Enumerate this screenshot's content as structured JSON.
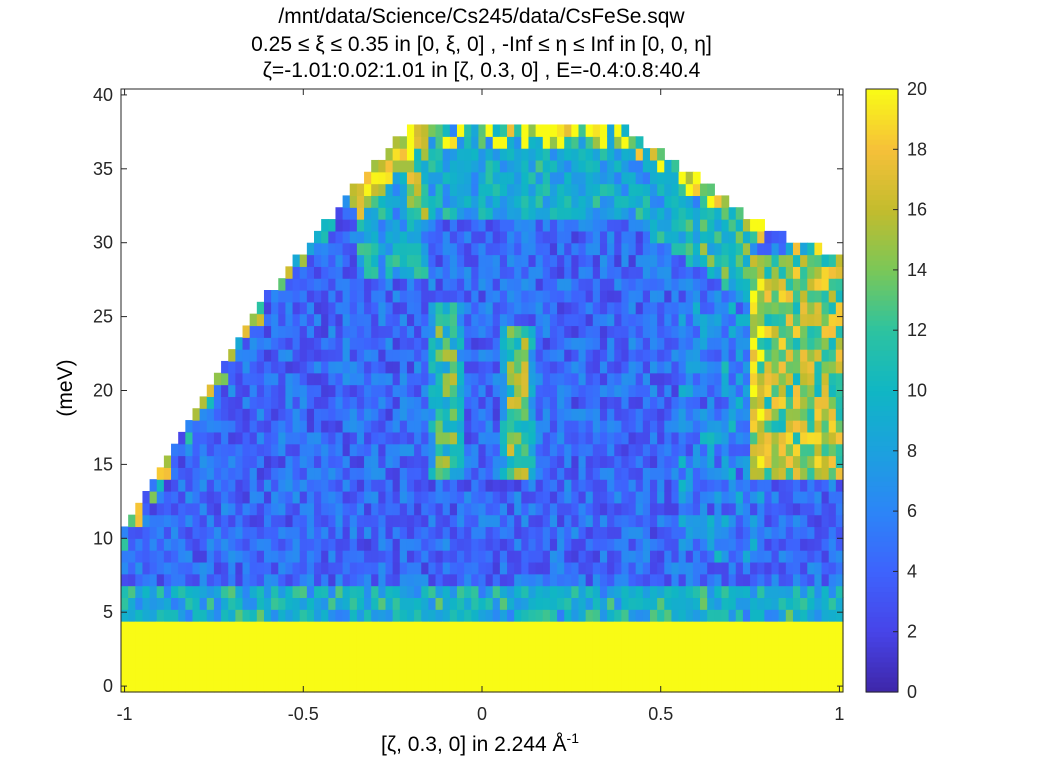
{
  "figure": {
    "title_lines": [
      "/mnt/data/Science/Cs245/data/CsFeSe.sqw",
      "0.25 ≤ ξ ≤ 0.35 in [0, ξ, 0] , -Inf ≤ η ≤ Inf in [0, 0, η]",
      "ζ=-1.01:0.02:1.01 in [ζ, 0.3, 0] , E=-0.4:0.8:40.4"
    ],
    "xlabel_main": "[ζ, 0.3, 0] in 2.244 Å",
    "xlabel_sup": "-1",
    "ylabel": "(meV)"
  },
  "chart_data": {
    "type": "heatmap",
    "title": "/mnt/data/Science/Cs245/data/CsFeSe.sqw",
    "xlabel": "[ζ, 0.3, 0] in 2.244 Å^-1",
    "ylabel": "(meV)",
    "xlim": [
      -1.01,
      1.01
    ],
    "ylim": [
      -0.4,
      40.4
    ],
    "x_bins": {
      "start": -1.01,
      "step": 0.02,
      "end": 1.01
    },
    "y_bins": {
      "start": -0.4,
      "step": 0.8,
      "end": 40.4
    },
    "x_ticks": [
      -1,
      -0.5,
      0,
      0.5,
      1
    ],
    "x_tick_labels": [
      "-1",
      "-0.5",
      "0",
      "0.5",
      "1"
    ],
    "y_ticks": [
      0,
      5,
      10,
      15,
      20,
      25,
      30,
      35,
      40
    ],
    "y_tick_labels": [
      "0",
      "5",
      "10",
      "15",
      "20",
      "25",
      "30",
      "35",
      "40"
    ],
    "colorbar": {
      "clim": [
        0,
        20
      ],
      "ticks": [
        0,
        2,
        4,
        6,
        8,
        10,
        12,
        14,
        16,
        18,
        20
      ],
      "tick_labels": [
        "0",
        "2",
        "4",
        "6",
        "8",
        "10",
        "12",
        "14",
        "16",
        "18",
        "20"
      ],
      "colormap": "parula",
      "colors": [
        "#3e26a8",
        "#4744e8",
        "#3e63fd",
        "#2c85f7",
        "#1ca1de",
        "#10b6c4",
        "#2dc3a0",
        "#7ac758",
        "#c3bc2d",
        "#f6c03a",
        "#f9fb15"
      ]
    },
    "regions": {
      "elastic_line": {
        "emax": 4.4,
        "value": 20
      },
      "kinematic_top_edge": [
        {
          "x": -1.0,
          "e": 10.5
        },
        {
          "x": -0.9,
          "e": 14.5
        },
        {
          "x": -0.8,
          "e": 18.5
        },
        {
          "x": -0.7,
          "e": 22.5
        },
        {
          "x": -0.6,
          "e": 26.5
        },
        {
          "x": -0.5,
          "e": 29.5
        },
        {
          "x": -0.4,
          "e": 32.5
        },
        {
          "x": -0.3,
          "e": 35.5
        },
        {
          "x": -0.2,
          "e": 37.9
        },
        {
          "x": 0.0,
          "e": 37.9
        },
        {
          "x": 0.2,
          "e": 37.9
        },
        {
          "x": 0.4,
          "e": 37.9
        },
        {
          "x": 0.5,
          "e": 36.0
        },
        {
          "x": 0.6,
          "e": 34.5
        },
        {
          "x": 0.7,
          "e": 32.5
        },
        {
          "x": 0.8,
          "e": 31.0
        },
        {
          "x": 0.9,
          "e": 30.0
        },
        {
          "x": 1.0,
          "e": 29.0
        }
      ],
      "background_intensity": 3.5,
      "features": [
        {
          "label": "streak",
          "x": -0.1,
          "e_range": [
            14,
            26
          ],
          "intensity": 12
        },
        {
          "label": "streak",
          "x": 0.1,
          "e_range": [
            14,
            24
          ],
          "intensity": 13
        },
        {
          "label": "edge band",
          "x_range": [
            -0.35,
            -0.15
          ],
          "e_range": [
            28,
            38
          ],
          "intensity": 20
        },
        {
          "label": "hot region",
          "x_range": [
            0.75,
            1.0
          ],
          "e_range": [
            14,
            29
          ],
          "intensity": 15
        }
      ]
    }
  }
}
